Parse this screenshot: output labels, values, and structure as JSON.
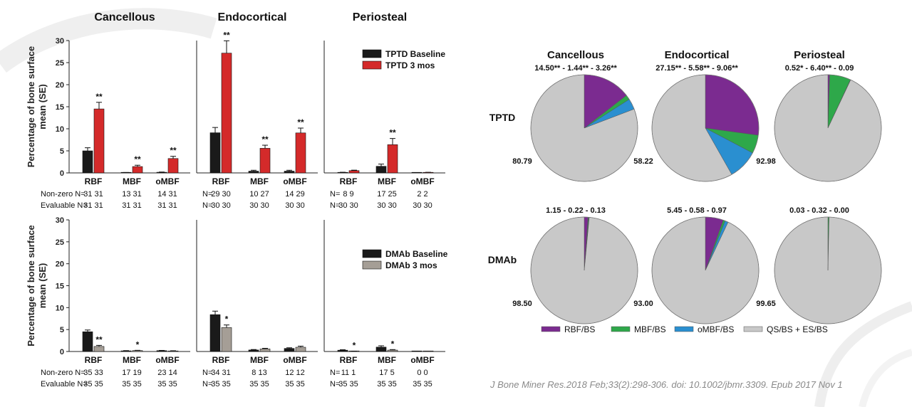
{
  "bar_figure": {
    "ylabel_line1": "Percentage of bone surface",
    "ylabel_line2": "mean (SE)",
    "row_labels": {
      "nonzero": "Non-zero N=",
      "evaluable": "Evaluable N=",
      "n": "N="
    }
  },
  "pie_figure": {
    "legend": [
      "RBF/BS",
      "MBF/BS",
      "oMBF/BS",
      "QS/BS + ES/BS"
    ]
  },
  "citation": "J Bone Miner Res.2018 Feb;33(2):298-306. doi: 10.1002/jbmr.3309. Epub 2017 Nov 1",
  "colors": {
    "baseline": "#1a1a1a",
    "tptd3": "#d42a2a",
    "dmab3": "#a59e96",
    "rbf": "#7b2b90",
    "mbf": "#2ea84a",
    "ombf": "#2a8fd0",
    "qs": "#c8c8c8"
  },
  "chart_data": [
    {
      "type": "bar",
      "row": "TPTD",
      "ylim": [
        0,
        30
      ],
      "yticks": [
        0,
        5,
        10,
        15,
        20,
        25,
        30
      ],
      "ylabel": "Percentage of bone surface mean (SE)",
      "legend": [
        "TPTD Baseline",
        "TPTD 3 mos"
      ],
      "panels": [
        {
          "title": "Cancellous",
          "categories": [
            "RBF",
            "MBF",
            "oMBF"
          ],
          "series": [
            {
              "name": "TPTD Baseline",
              "values": [
                5.0,
                0.05,
                0.15
              ],
              "errors": [
                0.7,
                0.05,
                0.05
              ]
            },
            {
              "name": "TPTD 3 mos",
              "values": [
                14.5,
                1.44,
                3.26
              ],
              "errors": [
                1.5,
                0.3,
                0.5
              ]
            }
          ],
          "annotations": [
            "**",
            "**",
            "**"
          ],
          "nonzero_n": [
            "31 31",
            "13 31",
            "14 31"
          ],
          "evaluable_n": [
            "31 31",
            "31 31",
            "31 31"
          ]
        },
        {
          "title": "Endocortical",
          "categories": [
            "RBF",
            "MBF",
            "oMBF"
          ],
          "series": [
            {
              "name": "TPTD Baseline",
              "values": [
                9.1,
                0.4,
                0.4
              ],
              "errors": [
                1.2,
                0.2,
                0.2
              ]
            },
            {
              "name": "TPTD 3 mos",
              "values": [
                27.15,
                5.58,
                9.06
              ],
              "errors": [
                2.8,
                0.7,
                1.1
              ]
            }
          ],
          "annotations": [
            "**",
            "**",
            "**"
          ],
          "nonzero_n": [
            "29 30",
            "10 27",
            "14 29"
          ],
          "evaluable_n": [
            "30 30",
            "30 30",
            "30 30"
          ]
        },
        {
          "title": "Periosteal",
          "categories": [
            "RBF",
            "MBF",
            "oMBF"
          ],
          "series": [
            {
              "name": "TPTD Baseline",
              "values": [
                0.1,
                1.5,
                0.0
              ],
              "errors": [
                0.05,
                0.5,
                0.0
              ]
            },
            {
              "name": "TPTD 3 mos",
              "values": [
                0.52,
                6.4,
                0.09
              ],
              "errors": [
                0.1,
                1.4,
                0.05
              ]
            }
          ],
          "annotations": [
            "",
            "**",
            ""
          ],
          "nonzero_n": [
            "8 9",
            "17 25",
            "2 2"
          ],
          "evaluable_n": [
            "30 30",
            "30 30",
            "30 30"
          ]
        }
      ]
    },
    {
      "type": "bar",
      "row": "DMAb",
      "ylim": [
        0,
        30
      ],
      "yticks": [
        0,
        5,
        10,
        15,
        20,
        25,
        30
      ],
      "ylabel": "Percentage of bone surface mean (SE)",
      "legend": [
        "DMAb Baseline",
        "DMAb 3 mos"
      ],
      "panels": [
        {
          "title": "Cancellous",
          "categories": [
            "RBF",
            "MBF",
            "oMBF"
          ],
          "series": [
            {
              "name": "DMAb Baseline",
              "values": [
                4.5,
                0.15,
                0.2
              ],
              "errors": [
                0.4,
                0.05,
                0.05
              ]
            },
            {
              "name": "DMAb 3 mos",
              "values": [
                1.15,
                0.22,
                0.13
              ],
              "errors": [
                0.25,
                0.05,
                0.05
              ]
            }
          ],
          "annotations": [
            "**",
            "*",
            ""
          ],
          "nonzero_n": [
            "35 33",
            "17 19",
            "23 14"
          ],
          "evaluable_n": [
            "35 35",
            "35 35",
            "35 35"
          ]
        },
        {
          "title": "Endocortical",
          "categories": [
            "RBF",
            "MBF",
            "oMBF"
          ],
          "series": [
            {
              "name": "DMAb Baseline",
              "values": [
                8.4,
                0.35,
                0.7
              ],
              "errors": [
                0.8,
                0.1,
                0.15
              ]
            },
            {
              "name": "DMAb 3 mos",
              "values": [
                5.45,
                0.58,
                0.97
              ],
              "errors": [
                0.6,
                0.15,
                0.25
              ]
            }
          ],
          "annotations": [
            "*",
            "",
            ""
          ],
          "nonzero_n": [
            "34 31",
            "8 13",
            "12 12"
          ],
          "evaluable_n": [
            "35 35",
            "35 35",
            "35 35"
          ]
        },
        {
          "title": "Periosteal",
          "categories": [
            "RBF",
            "MBF",
            "oMBF"
          ],
          "series": [
            {
              "name": "DMAb Baseline",
              "values": [
                0.3,
                1.0,
                0.0
              ],
              "errors": [
                0.1,
                0.3,
                0.0
              ]
            },
            {
              "name": "DMAb 3 mos",
              "values": [
                0.03,
                0.32,
                0.0
              ],
              "errors": [
                0.02,
                0.12,
                0.0
              ]
            }
          ],
          "annotations": [
            "*",
            "*",
            ""
          ],
          "nonzero_n": [
            "11 1",
            "17 5",
            "0 0"
          ],
          "evaluable_n": [
            "35 35",
            "35 35",
            "35 35"
          ]
        }
      ]
    },
    {
      "type": "pie",
      "categories": [
        "RBF/BS",
        "MBF/BS",
        "oMBF/BS",
        "QS/BS + ES/BS"
      ],
      "columns": [
        "Cancellous",
        "Endocortical",
        "Periosteal"
      ],
      "rows": [
        "TPTD",
        "DMAb"
      ],
      "pies": [
        {
          "row": "TPTD",
          "column": "Cancellous",
          "label": "14.50** - 1.44** - 3.26**",
          "values": [
            14.5,
            1.44,
            3.26,
            80.79
          ],
          "remainder_label": "80.79"
        },
        {
          "row": "TPTD",
          "column": "Endocortical",
          "label": "27.15** - 5.58** - 9.06**",
          "values": [
            27.15,
            5.58,
            9.06,
            58.22
          ],
          "remainder_label": "58.22"
        },
        {
          "row": "TPTD",
          "column": "Periosteal",
          "label": "0.52* - 6.40** - 0.09",
          "values": [
            0.52,
            6.4,
            0.09,
            92.98
          ],
          "remainder_label": "92.98"
        },
        {
          "row": "DMAb",
          "column": "Cancellous",
          "label": "1.15 - 0.22 - 0.13",
          "values": [
            1.15,
            0.22,
            0.13,
            98.5
          ],
          "remainder_label": "98.50"
        },
        {
          "row": "DMAb",
          "column": "Endocortical",
          "label": "5.45 - 0.58 - 0.97",
          "values": [
            5.45,
            0.58,
            0.97,
            93.0
          ],
          "remainder_label": "93.00"
        },
        {
          "row": "DMAb",
          "column": "Periosteal",
          "label": "0.03 - 0.32 - 0.00",
          "values": [
            0.03,
            0.32,
            0.0,
            99.65
          ],
          "remainder_label": "99.65"
        }
      ]
    }
  ]
}
